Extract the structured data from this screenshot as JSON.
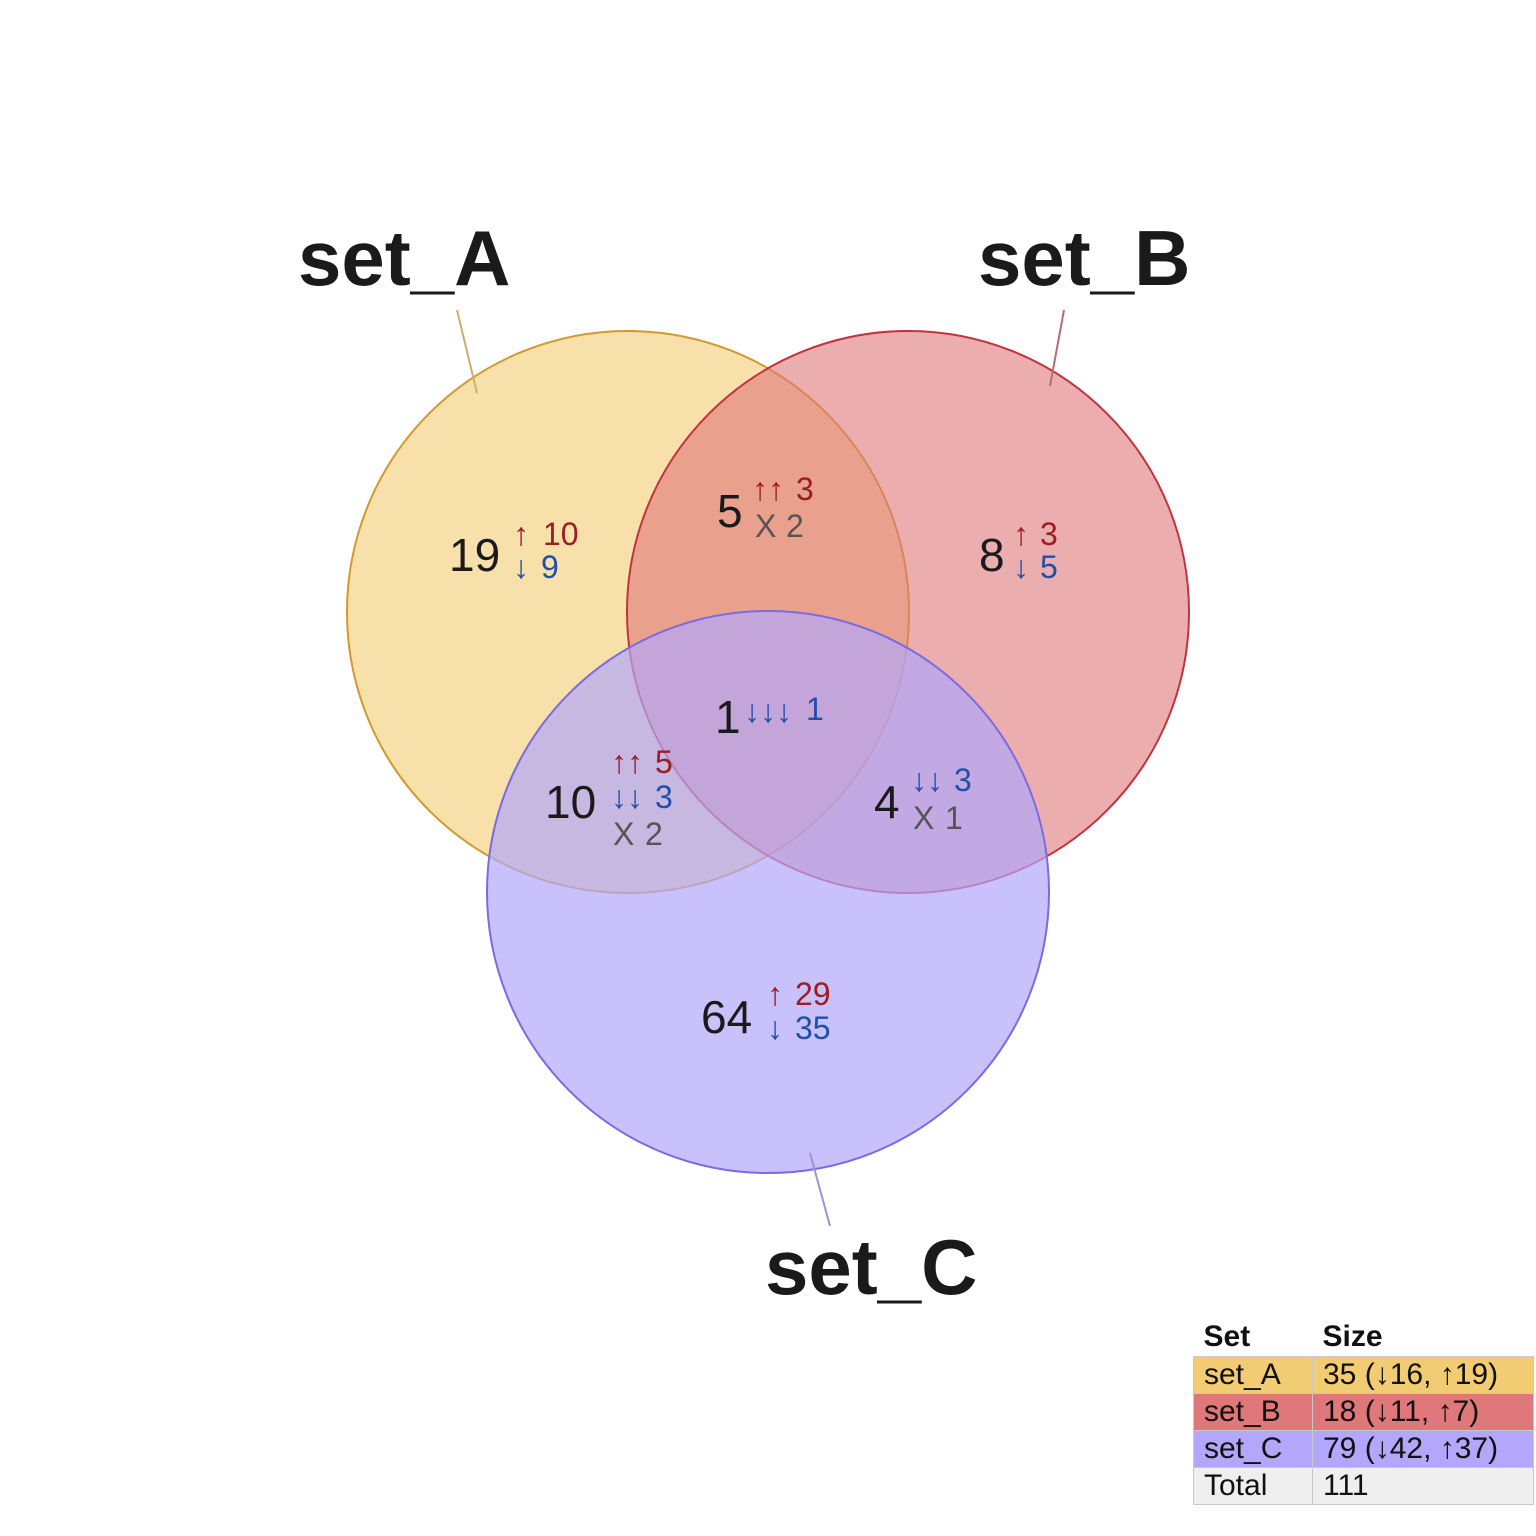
{
  "colors": {
    "set_A": "#f2cc72",
    "set_B": "#e0777a",
    "set_C": "#b2a7fa",
    "up": "#9b1c24",
    "down": "#1f4fa8",
    "mixed": "#555555",
    "total": "#efefef"
  },
  "sets": [
    {
      "name": "set_A",
      "color": "#f2cc72",
      "stroke": "#d09a2e"
    },
    {
      "name": "set_B",
      "color": "#e0777a",
      "stroke": "#c23340"
    },
    {
      "name": "set_C",
      "color": "#b2a7fa",
      "stroke": "#7b6ae0"
    }
  ],
  "regions": [
    {
      "id": "A-only",
      "count": "19",
      "lines": [
        {
          "arrows": "↑",
          "value": "10",
          "kind": "up"
        },
        {
          "arrows": "↓",
          "value": "9",
          "kind": "down"
        }
      ]
    },
    {
      "id": "B-only",
      "count": "8",
      "lines": [
        {
          "arrows": "↑",
          "value": "3",
          "kind": "up"
        },
        {
          "arrows": "↓",
          "value": "5",
          "kind": "down"
        }
      ]
    },
    {
      "id": "C-only",
      "count": "64",
      "lines": [
        {
          "arrows": "↑",
          "value": "29",
          "kind": "up"
        },
        {
          "arrows": "↓",
          "value": "35",
          "kind": "down"
        }
      ]
    },
    {
      "id": "AB",
      "count": "5",
      "lines": [
        {
          "arrows": "↑↑",
          "value": "3",
          "kind": "up"
        },
        {
          "arrows": "X",
          "value": "2",
          "kind": "mixed"
        }
      ]
    },
    {
      "id": "AC",
      "count": "10",
      "lines": [
        {
          "arrows": "↑↑",
          "value": "5",
          "kind": "up"
        },
        {
          "arrows": "↓↓",
          "value": "3",
          "kind": "down"
        },
        {
          "arrows": "X",
          "value": "2",
          "kind": "mixed"
        }
      ]
    },
    {
      "id": "BC",
      "count": "4",
      "lines": [
        {
          "arrows": "↓↓",
          "value": "3",
          "kind": "down"
        },
        {
          "arrows": "X",
          "value": "1",
          "kind": "mixed"
        }
      ]
    },
    {
      "id": "ABC",
      "count": "1",
      "lines": [
        {
          "arrows": "↓↓↓",
          "value": "1",
          "kind": "down"
        }
      ]
    }
  ],
  "legend": {
    "headers": [
      "Set",
      "Size"
    ],
    "rows": [
      {
        "set": "set_A",
        "size": "35 (↓16, ↑19)",
        "color": "#f2cc72"
      },
      {
        "set": "set_B",
        "size": "18 (↓11, ↑7)",
        "color": "#e0777a"
      },
      {
        "set": "set_C",
        "size": "79 (↓42, ↑37)",
        "color": "#b2a7fa"
      },
      {
        "set": "Total",
        "size": "111",
        "color": "#efefef"
      }
    ]
  }
}
